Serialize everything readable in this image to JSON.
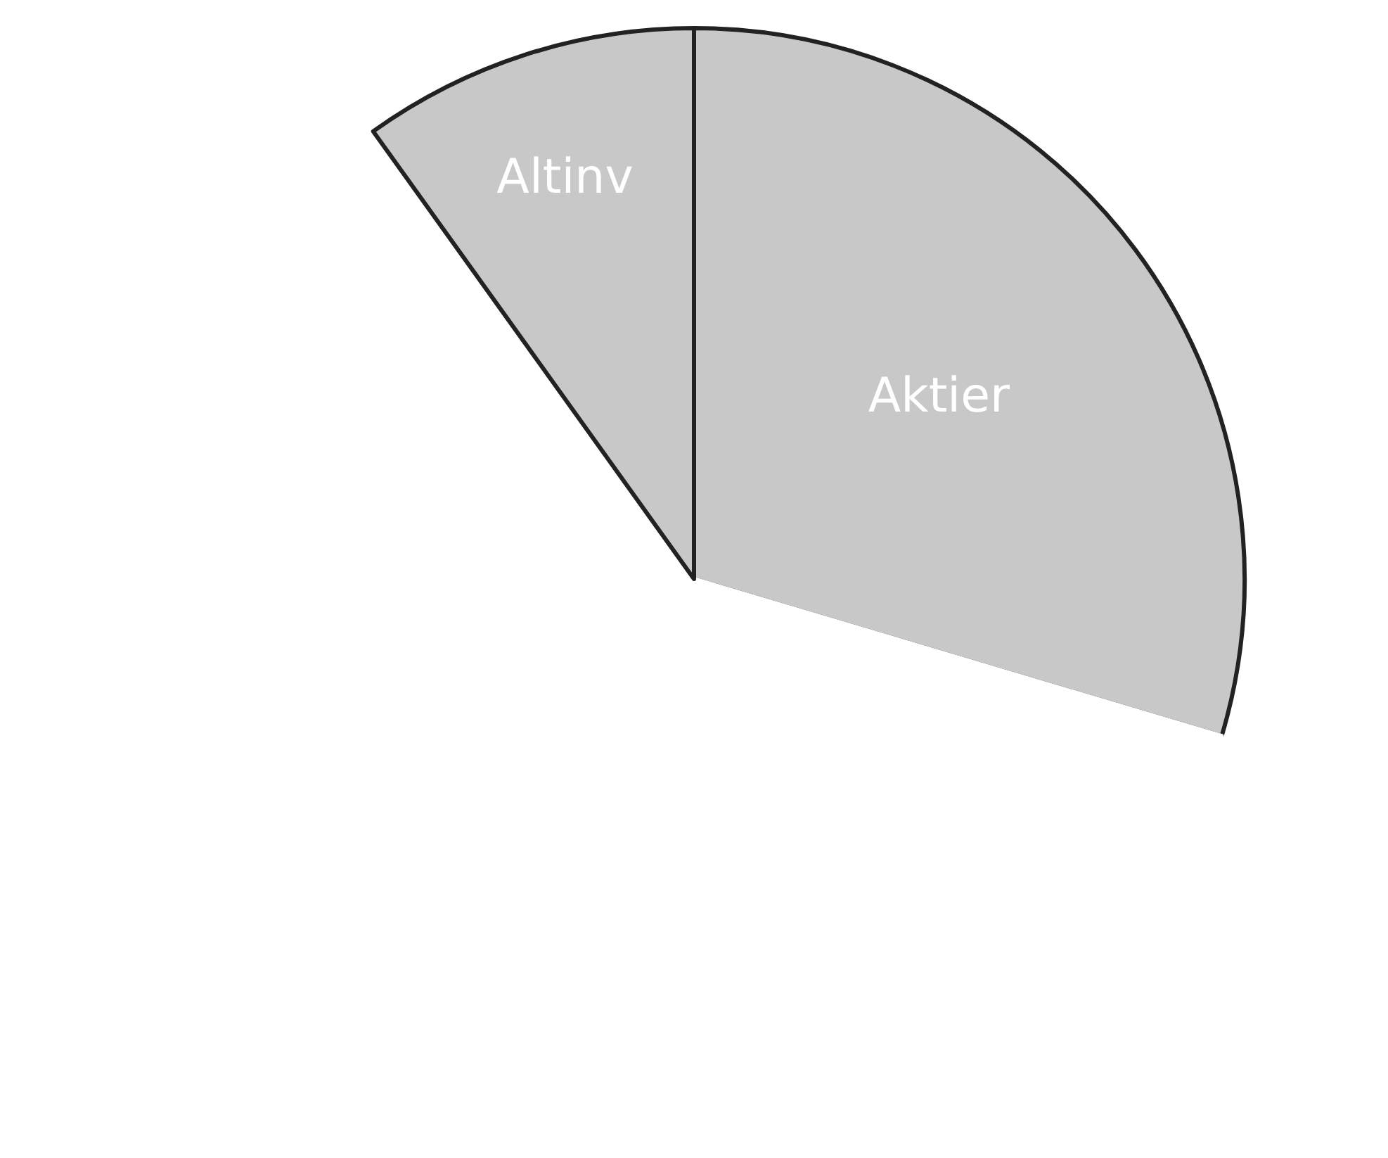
{
  "chart_data": {
    "type": "pie",
    "categories": [
      "Aktier",
      null,
      "Altinv"
    ],
    "values": [
      29.6,
      60.5,
      9.9
    ],
    "colors": [
      "#c8c8c8",
      "#ffffff",
      "#c8c8c8"
    ],
    "legend": false
  }
}
